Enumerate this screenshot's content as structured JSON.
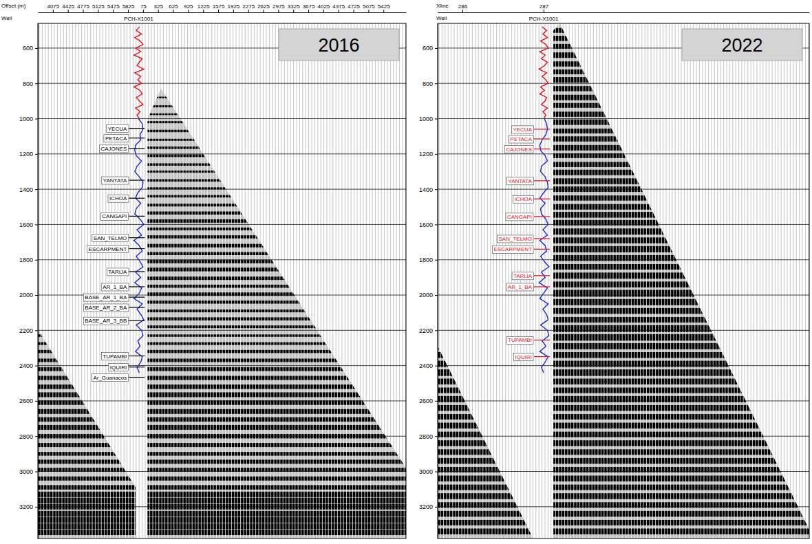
{
  "chart_data": [
    {
      "type": "seismic",
      "title": "2016",
      "x_label": "Offset (m)",
      "well_label": "Well",
      "well_name": "PCH-X1001",
      "categories": [
        "4075",
        "4425",
        "4775",
        "5125",
        "5475",
        "5825",
        "75",
        "325",
        "625",
        "925",
        "1225",
        "1575",
        "1925",
        "2275",
        "2625",
        "2975",
        "3325",
        "3675",
        "4025",
        "4375",
        "4725",
        "5075",
        "5425"
      ],
      "xlim": [
        -1,
        23.5
      ],
      "ylim": [
        460,
        3380
      ],
      "yticks": [
        600,
        800,
        1000,
        1200,
        1400,
        1600,
        1800,
        2000,
        2200,
        2400,
        2600,
        2800,
        3000,
        3200
      ],
      "grid": true,
      "well_x": 5.7,
      "curve_xlim": [
        -1,
        1
      ],
      "well_curves": [
        {
          "color": "#e8101a",
          "depths": [
            480,
            500,
            520,
            540,
            560,
            580,
            600,
            620,
            640,
            660,
            680,
            700,
            720,
            740,
            760,
            780,
            800,
            820,
            840,
            860,
            880,
            900,
            920,
            940,
            960,
            980,
            1000
          ],
          "values": [
            0.1,
            -0.3,
            0.4,
            -0.5,
            0.2,
            0.6,
            -0.4,
            0.3,
            -0.6,
            0.5,
            0.1,
            -0.2,
            0.7,
            -0.5,
            0.3,
            -0.1,
            0.4,
            -0.6,
            0.2,
            0.5,
            -0.3,
            0.1,
            0.6,
            -0.4,
            0.2,
            -0.2,
            0.1
          ]
        },
        {
          "color": "#1a2ad8",
          "depths": [
            1000,
            1030,
            1060,
            1090,
            1120,
            1150,
            1180,
            1210,
            1240,
            1270,
            1300,
            1330,
            1360,
            1390,
            1420,
            1450,
            1480,
            1510,
            1540,
            1570,
            1600,
            1630,
            1660,
            1690,
            1720,
            1750,
            1780,
            1810,
            1840,
            1870,
            1900,
            1930,
            1960,
            1990,
            2020,
            2050,
            2080,
            2110,
            2140,
            2170,
            2200,
            2230,
            2260,
            2290,
            2320,
            2350,
            2380,
            2410,
            2440
          ],
          "values": [
            0.0,
            0.5,
            0.6,
            0.2,
            0.3,
            -0.4,
            -0.5,
            -0.3,
            0.4,
            -0.2,
            -0.5,
            0.1,
            0.6,
            0.5,
            -0.1,
            -0.4,
            0.3,
            -0.3,
            -0.5,
            0.2,
            0.7,
            -0.2,
            0.4,
            -0.6,
            0.1,
            0.5,
            -0.3,
            0.2,
            0.6,
            -0.4,
            0.3,
            -0.5,
            0.4,
            0.1,
            -0.6,
            0.5,
            -0.2,
            0.3,
            0.7,
            -0.3,
            0.4,
            0.6,
            -0.1,
            0.2,
            -0.4,
            0.5,
            0.3,
            -0.2,
            0.1
          ]
        }
      ],
      "tops": {
        "names": [
          "YECUA",
          "PETACA",
          "CAJONES",
          "YANTATA",
          "ICHOA",
          "CANGAPI",
          "SAN_TELMO",
          "ESCARPMENT",
          "TARIJA",
          "AR_1_BA",
          "BASE_AR_1_BA",
          "BASE_AR_2_BA",
          "BASE_AR_3_BB",
          "TUPAMBI",
          "IQUIRI",
          "Ar_Guanacos"
        ],
        "times": [
          1055,
          1110,
          1169,
          1349,
          1451,
          1553,
          1675,
          1737,
          1867,
          1953,
          2012,
          2070,
          2145,
          2345,
          2408,
          2466
        ],
        "color": "#000000"
      },
      "coverage": [
        {
          "x": [
            6.3,
            7.2,
            23.5,
            23.5,
            6.3
          ],
          "y": [
            1000,
            830,
            2980,
            3380,
            3380
          ]
        },
        {
          "x": [
            -1,
            5.5,
            5.5,
            -1
          ],
          "y": [
            2195,
            3090,
            3380,
            3380
          ]
        }
      ],
      "reflectors": {
        "times": [
          880,
          930,
          975,
          1020,
          1070,
          1120,
          1165,
          1210,
          1260,
          1300,
          1350,
          1395,
          1440,
          1490,
          1535,
          1580,
          1625,
          1670,
          1720,
          1765,
          1810,
          1855,
          1905,
          1950,
          1995,
          2040,
          2090,
          2135,
          2180,
          2230,
          2275,
          2320,
          2370,
          2420,
          2470,
          2520,
          2565,
          2610,
          2660,
          2705,
          2750,
          2800,
          2850,
          2900,
          2945,
          2990,
          3040,
          3090,
          3130,
          3165,
          3200,
          3240,
          3275,
          3310,
          3345
        ],
        "amplitudes": [
          0.25,
          0.3,
          0.25,
          0.3,
          0.35,
          0.3,
          0.35,
          0.4,
          0.35,
          0.3,
          0.35,
          0.3,
          0.35,
          0.4,
          0.45,
          0.5,
          0.4,
          0.45,
          0.5,
          0.45,
          0.5,
          0.55,
          0.5,
          0.45,
          0.5,
          0.45,
          0.4,
          0.45,
          0.4,
          0.35,
          0.4,
          0.45,
          0.5,
          0.55,
          0.6,
          0.65,
          0.7,
          0.65,
          0.7,
          0.65,
          0.7,
          0.65,
          0.6,
          0.55,
          0.6,
          0.55,
          0.6,
          0.65,
          0.8,
          0.85,
          0.8,
          0.85,
          0.8,
          0.85,
          0.8
        ]
      }
    },
    {
      "type": "seismic",
      "title": "2022",
      "x_label": "Xline",
      "well_label": "Well",
      "well_name": "PCH-X1001",
      "xlim": [
        285.695,
        290.271
      ],
      "xticks": [
        286,
        287
      ],
      "ylim": [
        460,
        3380
      ],
      "yticks": [
        600,
        800,
        1000,
        1200,
        1400,
        1600,
        1800,
        2000,
        2200,
        2400,
        2600,
        2800,
        3000,
        3200
      ],
      "grid": true,
      "well_x": 287,
      "curve_xlim": [
        -1,
        1
      ],
      "well_curves": [
        {
          "color": "#e8101a",
          "depths": [
            480,
            500,
            520,
            540,
            560,
            580,
            600,
            620,
            640,
            660,
            680,
            700,
            720,
            740,
            760,
            780,
            800,
            820,
            840,
            860,
            880,
            900,
            920,
            940,
            960,
            980,
            1000
          ],
          "values": [
            -0.2,
            0.4,
            -0.1,
            0.5,
            -0.4,
            0.3,
            0.6,
            -0.5,
            0.2,
            -0.3,
            0.5,
            0.1,
            -0.6,
            0.4,
            -0.2,
            0.3,
            0.6,
            -0.4,
            0.1,
            -0.5,
            0.4,
            0.2,
            -0.3,
            0.5,
            -0.1,
            0.3,
            0.0
          ]
        },
        {
          "color": "#1a2ad8",
          "depths": [
            1000,
            1030,
            1060,
            1090,
            1120,
            1150,
            1180,
            1210,
            1240,
            1270,
            1300,
            1330,
            1360,
            1390,
            1420,
            1450,
            1480,
            1510,
            1540,
            1570,
            1600,
            1630,
            1660,
            1690,
            1720,
            1750,
            1780,
            1810,
            1840,
            1870,
            1900,
            1930,
            1960,
            1990,
            2020,
            2050,
            2080,
            2110,
            2140,
            2170,
            2200,
            2230,
            2260,
            2290,
            2320,
            2350,
            2380,
            2410,
            2440
          ],
          "values": [
            0.1,
            0.4,
            0.5,
            0.3,
            -0.2,
            -0.5,
            -0.4,
            0.2,
            0.5,
            -0.3,
            -0.4,
            0.2,
            0.5,
            0.6,
            0.0,
            -0.5,
            0.2,
            -0.4,
            -0.3,
            0.3,
            0.6,
            -0.1,
            0.5,
            -0.5,
            0.2,
            0.4,
            -0.4,
            0.1,
            0.7,
            -0.3,
            0.2,
            -0.6,
            0.5,
            0.0,
            -0.5,
            0.6,
            -0.1,
            0.4,
            0.6,
            -0.4,
            0.5,
            0.7,
            -0.2,
            0.3,
            -0.5,
            0.6,
            0.2,
            -0.3,
            0.0
          ]
        }
      ],
      "tops": {
        "names": [
          "YECUA",
          "PETACA",
          "CAJONES",
          "YANTATA",
          "ICHOA",
          "CANGAPI",
          "SAN_TELMO",
          "ESCARPMENT",
          "TARIJA",
          "AR_1_BA",
          "TUPAMBI",
          "IQUIRI"
        ],
        "times": [
          1060,
          1115,
          1172,
          1352,
          1455,
          1555,
          1680,
          1740,
          1890,
          1953,
          2255,
          2349
        ],
        "color": "#e8101a"
      },
      "coverage": [
        {
          "x": [
            287.12,
            287.2,
            290.271,
            290.271,
            287.12
          ],
          "y": [
            500,
            462,
            3330,
            3380,
            3380
          ]
        },
        {
          "x": [
            285.695,
            286.87,
            286.87,
            285.695
          ],
          "y": [
            2290,
            3380,
            3380,
            3380
          ]
        }
      ],
      "reflectors": {
        "times": [
          500,
          545,
          590,
          640,
          690,
          735,
          780,
          830,
          880,
          925,
          975,
          1020,
          1070,
          1115,
          1165,
          1210,
          1260,
          1305,
          1355,
          1400,
          1450,
          1500,
          1545,
          1590,
          1640,
          1690,
          1740,
          1790,
          1840,
          1890,
          1940,
          1990,
          2040,
          2090,
          2140,
          2190,
          2240,
          2290,
          2340,
          2390,
          2440,
          2490,
          2540,
          2590,
          2640,
          2690,
          2740,
          2790,
          2840,
          2890,
          2940,
          2990,
          3040,
          3090,
          3140,
          3190,
          3240,
          3290,
          3340
        ],
        "amplitudes": [
          0.7,
          0.75,
          0.7,
          0.8,
          0.75,
          0.7,
          0.8,
          0.75,
          0.8,
          0.7,
          0.75,
          0.8,
          0.7,
          0.75,
          0.8,
          0.7,
          0.75,
          0.8,
          0.85,
          0.8,
          0.75,
          0.8,
          0.85,
          0.8,
          0.9,
          0.85,
          0.9,
          0.85,
          0.8,
          0.9,
          0.85,
          1.0,
          0.9,
          0.85,
          0.8,
          1.0,
          0.95,
          0.9,
          0.85,
          0.9,
          0.95,
          0.85,
          0.8,
          0.9,
          0.85,
          0.8,
          0.85,
          0.8,
          0.85,
          0.8,
          0.85,
          0.8,
          0.85,
          0.8,
          0.85,
          0.8,
          0.85,
          0.8,
          0.85
        ]
      }
    }
  ]
}
